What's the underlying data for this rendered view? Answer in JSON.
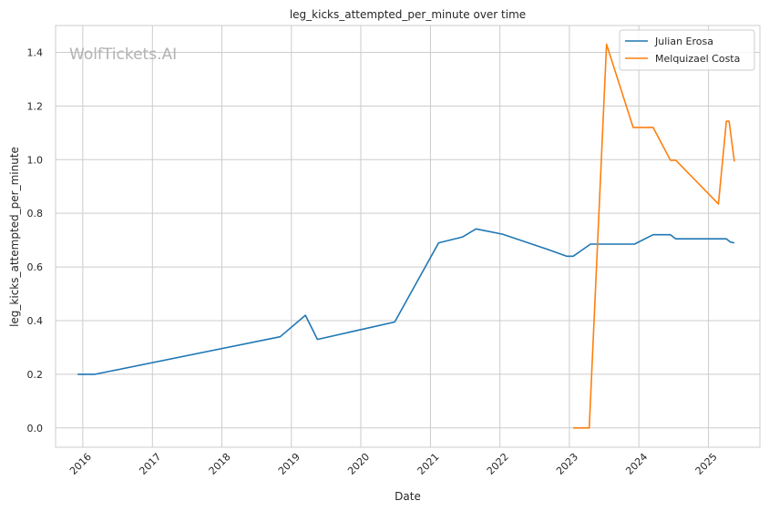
{
  "chart_data": {
    "type": "line",
    "title": "leg_kicks_attempted_per_minute over time",
    "xlabel": "Date",
    "ylabel": "leg_kicks_attempted_per_minute",
    "watermark": "WolfTickets.AI",
    "xlim": [
      "2015-08-11",
      "2025-09-28"
    ],
    "ylim": [
      -0.072,
      1.5
    ],
    "grid": true,
    "legend_position": "top-right",
    "x_ticks": [
      {
        "date": "2016-01-01",
        "label": "2016"
      },
      {
        "date": "2017-01-01",
        "label": "2017"
      },
      {
        "date": "2018-01-01",
        "label": "2018"
      },
      {
        "date": "2019-01-01",
        "label": "2019"
      },
      {
        "date": "2020-01-01",
        "label": "2020"
      },
      {
        "date": "2021-01-01",
        "label": "2021"
      },
      {
        "date": "2022-01-01",
        "label": "2022"
      },
      {
        "date": "2023-01-01",
        "label": "2023"
      },
      {
        "date": "2024-01-01",
        "label": "2024"
      },
      {
        "date": "2025-01-01",
        "label": "2025"
      }
    ],
    "y_ticks": [
      0.0,
      0.2,
      0.4,
      0.6,
      0.8,
      1.0,
      1.2,
      1.4
    ],
    "y_tick_labels": [
      "0.0",
      "0.2",
      "0.4",
      "0.6",
      "0.8",
      "1.0",
      "1.2",
      "1.4"
    ],
    "series": [
      {
        "name": "Julian Erosa",
        "color": "#1f77b4",
        "points": [
          [
            "2015-12-05",
            0.2
          ],
          [
            "2016-03-05",
            0.2
          ],
          [
            "2018-11-03",
            0.34
          ],
          [
            "2019-03-16",
            0.42
          ],
          [
            "2019-05-18",
            0.33
          ],
          [
            "2020-06-27",
            0.395
          ],
          [
            "2021-02-13",
            0.69
          ],
          [
            "2021-06-19",
            0.712
          ],
          [
            "2021-08-28",
            0.742
          ],
          [
            "2022-01-15",
            0.722
          ],
          [
            "2022-09-10",
            0.665
          ],
          [
            "2022-12-17",
            0.64
          ],
          [
            "2023-01-21",
            0.64
          ],
          [
            "2023-04-22",
            0.685
          ],
          [
            "2023-12-09",
            0.685
          ],
          [
            "2024-03-16",
            0.72
          ],
          [
            "2024-06-15",
            0.72
          ],
          [
            "2024-07-13",
            0.705
          ],
          [
            "2025-03-15",
            0.705
          ],
          [
            "2025-04-05",
            0.705
          ],
          [
            "2025-04-26",
            0.693
          ],
          [
            "2025-05-17",
            0.69
          ]
        ]
      },
      {
        "name": "Melquizael Costa",
        "color": "#ff7f0e",
        "points": [
          [
            "2023-01-21",
            0.0
          ],
          [
            "2023-04-15",
            0.0
          ],
          [
            "2023-07-15",
            1.43
          ],
          [
            "2023-12-02",
            1.12
          ],
          [
            "2024-03-16",
            1.12
          ],
          [
            "2024-06-15",
            0.998
          ],
          [
            "2024-07-13",
            0.998
          ],
          [
            "2025-02-22",
            0.835
          ],
          [
            "2025-04-05",
            1.143
          ],
          [
            "2025-04-19",
            1.143
          ],
          [
            "2025-05-17",
            0.993
          ]
        ]
      }
    ]
  }
}
